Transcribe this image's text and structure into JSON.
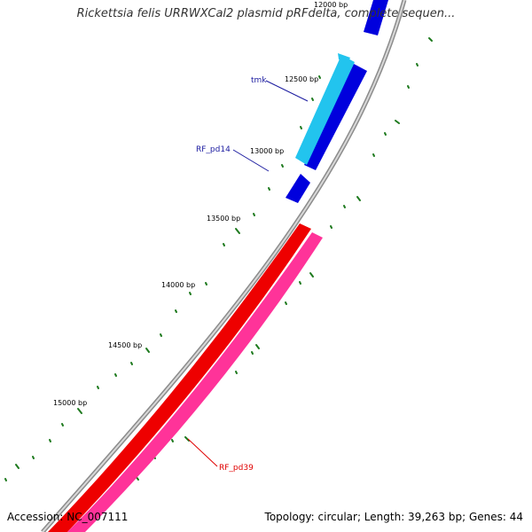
{
  "title": "Rickettsia felis URRWXCal2 plasmid pRFdelta, complete sequen...",
  "footer": {
    "accession": "Accession: NC_007111",
    "summary": "Topology: circular; Length: 39,263 bp; Genes: 44"
  },
  "ticks": [
    "12000 bp",
    "12500 bp",
    "13000 bp",
    "13500 bp",
    "14000 bp",
    "14500 bp",
    "15000 bp"
  ],
  "genes": [
    {
      "name": "tmk",
      "color": "#1c1ca0"
    },
    {
      "name": "RF_pd14",
      "color": "#1c1ca0"
    },
    {
      "name": "RF_pd39",
      "color": "#e00000"
    }
  ],
  "colors": {
    "backbone": "#8c8c8c",
    "blue_feature": "#0000dd",
    "cyan_feature": "#22c4ee",
    "red_feature": "#ee0000",
    "pink_feature": "#ff3399",
    "ticks": "#1e7a1e"
  }
}
